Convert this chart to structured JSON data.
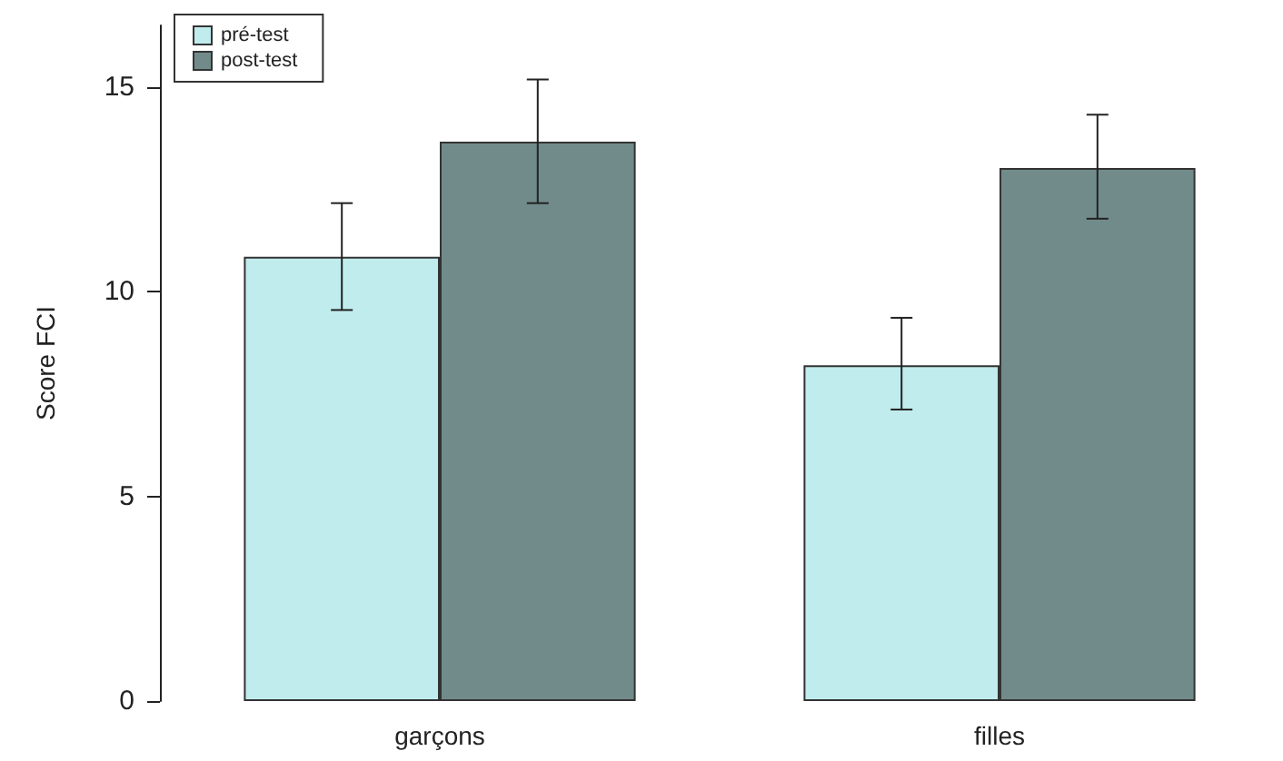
{
  "chart_data": {
    "type": "bar",
    "ylabel": "Score FCI",
    "categories": [
      "garçons",
      "filles"
    ],
    "series": [
      {
        "name": "pré-test",
        "color": "#c0eced",
        "values": [
          10.85,
          8.2
        ],
        "errors": [
          [
            9.55,
            12.16
          ],
          [
            7.12,
            9.36
          ]
        ]
      },
      {
        "name": "post-test",
        "color": "#718b8a",
        "values": [
          13.66,
          13.02
        ],
        "errors": [
          [
            12.16,
            15.18
          ],
          [
            11.78,
            14.32
          ]
        ]
      }
    ],
    "ylim": [
      0,
      16.5
    ],
    "yticks": [
      0,
      5,
      10,
      15
    ],
    "grid": false,
    "legend": "top left"
  }
}
